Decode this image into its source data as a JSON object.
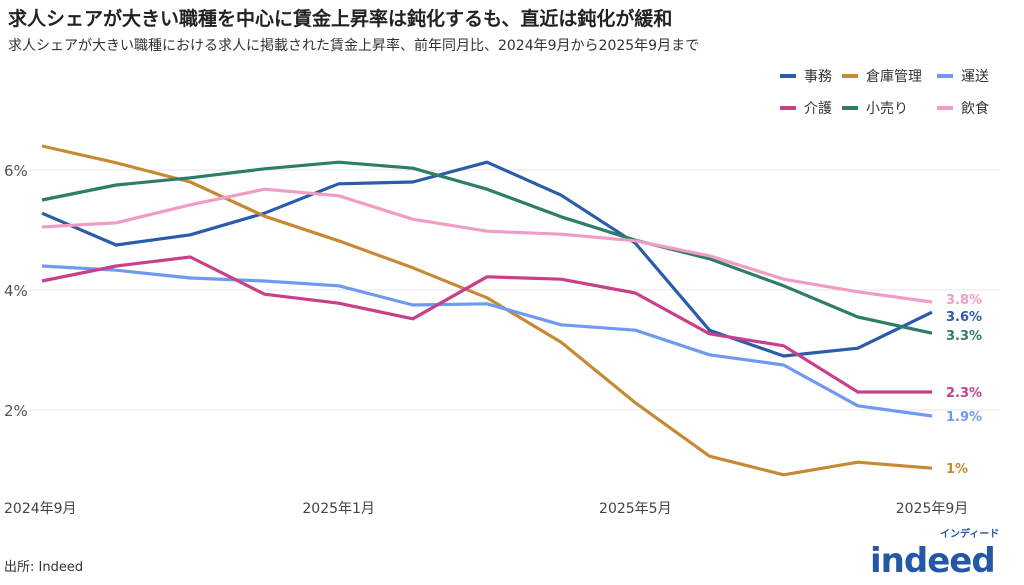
{
  "title": "求人シェアが大きい職種を中心に賃金上昇率は鈍化するも、直近は鈍化が緩和",
  "subtitle": "求人シェアが大きい職種における求人に掲載された賃金上昇率、前年同月比、2024年9月から2025年9月まで",
  "source": "出所: Indeed",
  "logo": {
    "text": "indeed",
    "kana": "インディード",
    "color": "#2557a7"
  },
  "chart_data": {
    "type": "line",
    "x": [
      "2024-09",
      "2024-10",
      "2024-11",
      "2024-12",
      "2025-01",
      "2025-02",
      "2025-03",
      "2025-04",
      "2025-05",
      "2025-06",
      "2025-07",
      "2025-08",
      "2025-09"
    ],
    "xticks": [
      {
        "index": 0,
        "label": "2024年9月"
      },
      {
        "index": 4,
        "label": "2025年1月"
      },
      {
        "index": 8,
        "label": "2025年5月"
      },
      {
        "index": 12,
        "label": "2025年9月"
      }
    ],
    "yticks": [
      {
        "value": 2,
        "label": "2%"
      },
      {
        "value": 4,
        "label": "4%"
      },
      {
        "value": 6,
        "label": "6%"
      }
    ],
    "ylim": [
      0,
      7
    ],
    "grid": true,
    "legend": "top-right",
    "series": [
      {
        "name": "事務",
        "color": "#2a5caa",
        "end_label": "3.6%",
        "values": [
          5.28,
          4.75,
          4.92,
          5.28,
          5.77,
          5.8,
          6.13,
          5.58,
          4.78,
          3.33,
          2.9,
          3.03,
          3.63
        ]
      },
      {
        "name": "倉庫管理",
        "color": "#c68a35",
        "end_label": "1%",
        "values": [
          6.4,
          6.12,
          5.8,
          5.23,
          4.82,
          4.37,
          3.87,
          3.13,
          2.12,
          1.23,
          0.92,
          1.13,
          1.03
        ]
      },
      {
        "name": "運送",
        "color": "#6f9af0",
        "end_label": "1.9%",
        "values": [
          4.4,
          4.33,
          4.2,
          4.15,
          4.07,
          3.75,
          3.77,
          3.42,
          3.33,
          2.92,
          2.75,
          2.07,
          1.9
        ]
      },
      {
        "name": "介護",
        "color": "#c9408a",
        "end_label": "2.3%",
        "values": [
          4.15,
          4.4,
          4.55,
          3.93,
          3.78,
          3.52,
          4.22,
          4.18,
          3.95,
          3.27,
          3.07,
          2.3,
          2.3
        ]
      },
      {
        "name": "小売り",
        "color": "#2e7d6a",
        "end_label": "3.3%",
        "values": [
          5.5,
          5.75,
          5.87,
          6.02,
          6.13,
          6.03,
          5.68,
          5.22,
          4.83,
          4.52,
          4.07,
          3.55,
          3.28
        ]
      },
      {
        "name": "飲食",
        "color": "#f09cc4",
        "end_label": "3.8%",
        "values": [
          5.05,
          5.12,
          5.42,
          5.68,
          5.57,
          5.18,
          4.98,
          4.93,
          4.82,
          4.57,
          4.18,
          3.97,
          3.8
        ]
      }
    ]
  }
}
